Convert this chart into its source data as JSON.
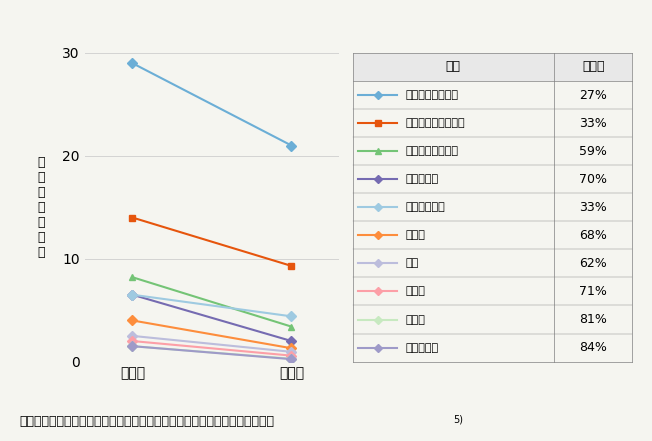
{
  "title": "断熱性能の高い省エネ住宅転居後の有病割合の改善効果（全国１万軒調査）",
  "title_superscript": "5)",
  "ylabel": "有\n病\n割\n合\n（\n％\n）",
  "xlabel_before": "転居前",
  "xlabel_after": "転居後",
  "ylim": [
    0,
    30
  ],
  "yticks": [
    0,
    10,
    20,
    30
  ],
  "diseases": [
    {
      "name": "アレルギー性鼻炎",
      "before": 29.0,
      "after": 21.0,
      "improvement": "27%",
      "color": "#6baed6",
      "marker": "D",
      "lw": 1.5
    },
    {
      "name": "アレルギー性結膜炎",
      "before": 14.0,
      "after": 9.3,
      "improvement": "33%",
      "color": "#e6550d",
      "marker": "s",
      "lw": 1.5
    },
    {
      "name": "アトピー性皮膚炎",
      "before": 8.2,
      "after": 3.4,
      "improvement": "59%",
      "color": "#74c476",
      "marker": "^",
      "lw": 1.5
    },
    {
      "name": "気管支喘息",
      "before": 6.5,
      "after": 2.0,
      "improvement": "70%",
      "color": "#756bb1",
      "marker": "D",
      "lw": 1.5
    },
    {
      "name": "高血圧性疾患",
      "before": 6.5,
      "after": 4.4,
      "improvement": "33%",
      "color": "#9ecae1",
      "marker": "D",
      "lw": 1.5
    },
    {
      "name": "関節炎",
      "before": 4.0,
      "after": 1.3,
      "improvement": "68%",
      "color": "#fd8d3c",
      "marker": "D",
      "lw": 1.5
    },
    {
      "name": "肺炎",
      "before": 2.5,
      "after": 0.95,
      "improvement": "62%",
      "color": "#bcbddc",
      "marker": "D",
      "lw": 1.5
    },
    {
      "name": "糖尿病",
      "before": 2.0,
      "after": 0.58,
      "improvement": "71%",
      "color": "#fc9fa7",
      "marker": "D",
      "lw": 1.5
    },
    {
      "name": "心疾患",
      "before": 1.5,
      "after": 0.28,
      "improvement": "81%",
      "color": "#c7e9c0",
      "marker": "D",
      "lw": 1.5
    },
    {
      "name": "脳血管疾患",
      "before": 1.5,
      "after": 0.24,
      "improvement": "84%",
      "color": "#9e9ac8",
      "marker": "D",
      "lw": 1.5
    }
  ],
  "bg_color": "#f5f5f0",
  "plot_bg": "#f5f5f0",
  "table_header_disease": "疾病",
  "table_header_improvement": "改善率",
  "col_split": 0.72,
  "footnote": "断熱性能の高い省エネ住宅転居後の有病割合の改善効果（全国１万軒調査）",
  "footnote_super": "5)"
}
